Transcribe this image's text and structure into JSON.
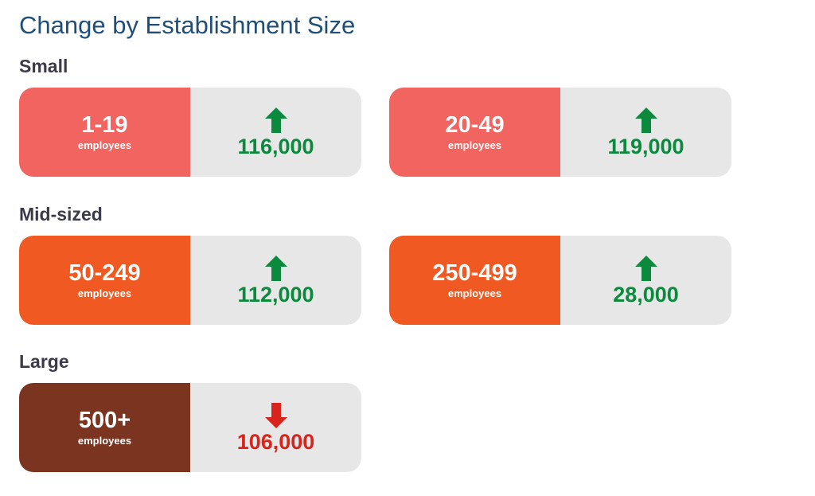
{
  "title": "Change by Establishment Size",
  "colors": {
    "small": "#f2645f",
    "mid": "#f05a22",
    "large": "#7b3420",
    "up": "#0b8a3e",
    "down": "#d9241b"
  },
  "sections": [
    {
      "label": "Small",
      "cards": [
        {
          "range": "1-19",
          "unit": "employees",
          "direction": "up",
          "value": "116,000"
        },
        {
          "range": "20-49",
          "unit": "employees",
          "direction": "up",
          "value": "119,000"
        }
      ]
    },
    {
      "label": "Mid-sized",
      "cards": [
        {
          "range": "50-249",
          "unit": "employees",
          "direction": "up",
          "value": "112,000"
        },
        {
          "range": "250-499",
          "unit": "employees",
          "direction": "up",
          "value": "28,000"
        }
      ]
    },
    {
      "label": "Large",
      "cards": [
        {
          "range": "500+",
          "unit": "employees",
          "direction": "down",
          "value": "106,000"
        }
      ]
    }
  ]
}
